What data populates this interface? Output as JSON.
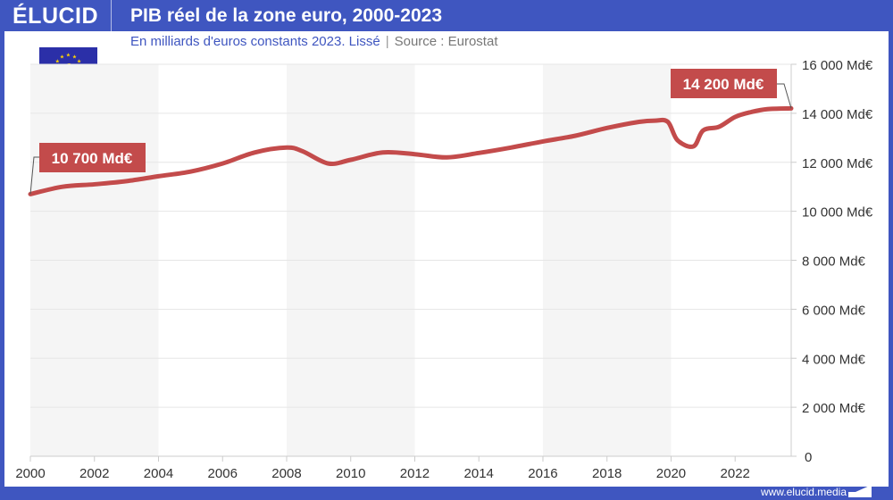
{
  "header": {
    "logo": "ÉLUCID",
    "title": "PIB réel de la zone euro, 2000-2023"
  },
  "subtitle": {
    "text": "En milliards d'euros constants 2023. Lissé",
    "source": "Source : Eurostat"
  },
  "footer": {
    "url": "www.elucid.media"
  },
  "colors": {
    "brand": "#3f56c0",
    "line": "#c34b4b",
    "band": "#f5f5f5"
  },
  "icons": {
    "flag": "eu-flag-euro-icon"
  },
  "chart_data": {
    "type": "line",
    "title": "PIB réel de la zone euro, 2000-2023",
    "xlim": [
      2000,
      2023.75
    ],
    "ylim": [
      0,
      16000
    ],
    "grid": true,
    "y_axis_side": "right",
    "x_ticks": [
      "2000",
      "2002",
      "2004",
      "2006",
      "2008",
      "2010",
      "2012",
      "2014",
      "2016",
      "2018",
      "2020",
      "2022"
    ],
    "y_ticks": [
      "0",
      "2 000 Md€",
      "4 000 Md€",
      "6 000 Md€",
      "8 000 Md€",
      "10 000 Md€",
      "12 000 Md€",
      "14 000 Md€",
      "16 000 Md€"
    ],
    "shaded_periods": [
      [
        2000,
        2004
      ],
      [
        2008,
        2012
      ],
      [
        2016,
        2020
      ]
    ],
    "series": [
      {
        "x": [
          2000,
          2001,
          2002,
          2003,
          2004,
          2005,
          2006,
          2007,
          2008,
          2008.5,
          2009.3,
          2010,
          2011,
          2012,
          2013,
          2014,
          2015,
          2016,
          2017,
          2018,
          2019,
          2019.5,
          2019.9,
          2020.2,
          2020.7,
          2021,
          2021.5,
          2022,
          2022.5,
          2023,
          2023.75
        ],
        "y": [
          10700,
          11000,
          11100,
          11230,
          11430,
          11620,
          11950,
          12400,
          12600,
          12450,
          11950,
          12100,
          12400,
          12330,
          12200,
          12380,
          12600,
          12850,
          13080,
          13400,
          13650,
          13700,
          13650,
          12900,
          12650,
          13300,
          13450,
          13850,
          14050,
          14170,
          14200
        ]
      }
    ],
    "annotations": [
      {
        "label": "10 700 Md€",
        "x": 2000,
        "y": 10700
      },
      {
        "label": "14 200 Md€",
        "x": 2023.75,
        "y": 14200
      }
    ]
  }
}
